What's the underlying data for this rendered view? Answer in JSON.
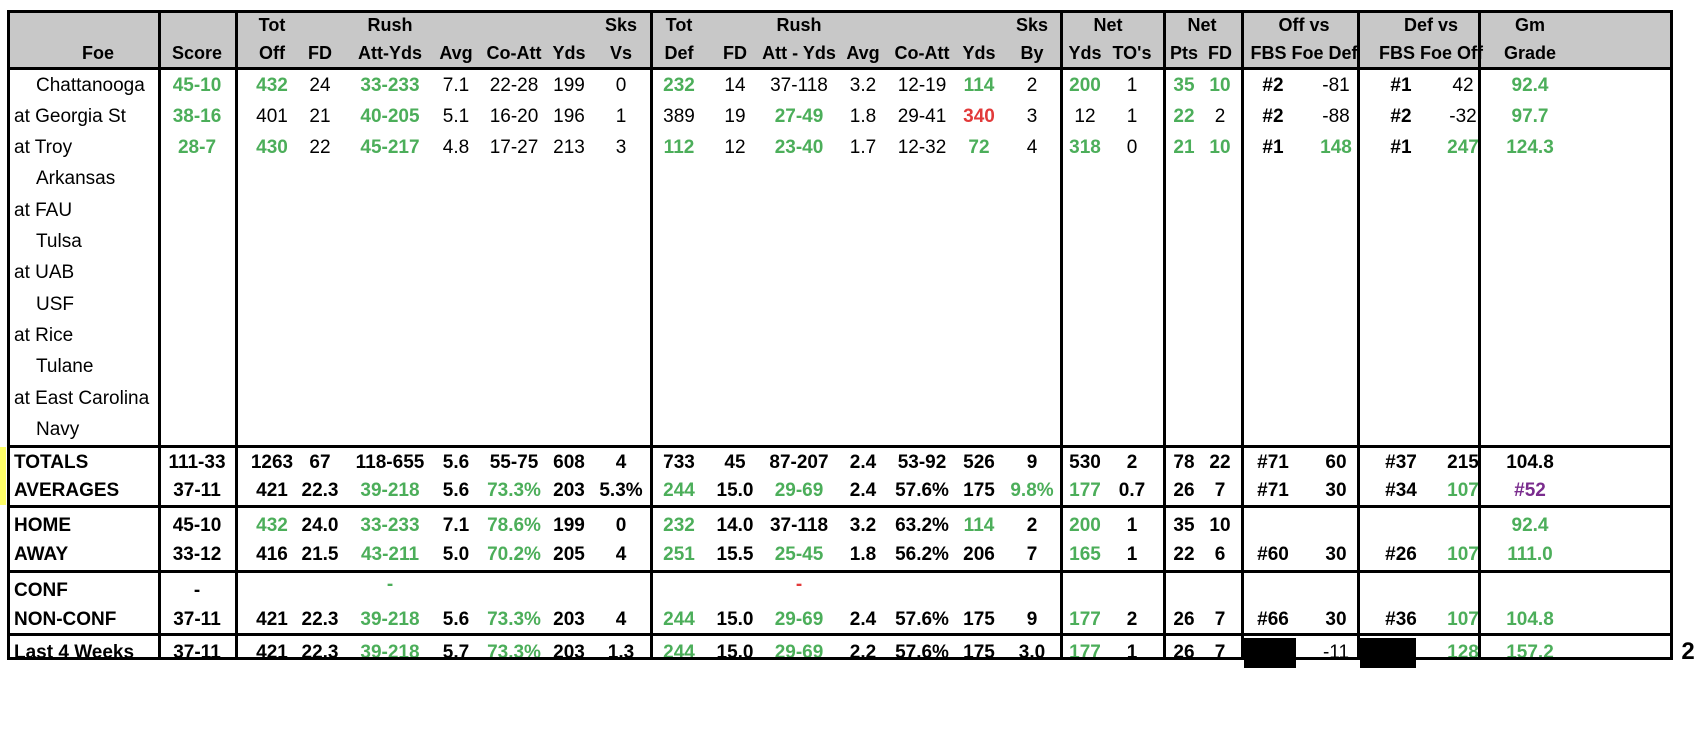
{
  "colors": {
    "green": "#4cae5a",
    "red": "#e23a3a",
    "purple": "#7a2c8e",
    "header_bg": "#c8c8c8",
    "highlight": "#ffff66"
  },
  "header": {
    "r1": [
      "",
      "",
      "Tot",
      "Rush",
      "",
      "",
      "",
      "Sks",
      "Tot",
      "Rush",
      "",
      "",
      "",
      "Sks",
      "Net",
      "",
      "Net",
      "",
      "Off vs",
      "",
      "Def vs",
      "",
      "Gm"
    ],
    "r2": [
      "Foe",
      "Score",
      "Off",
      "FD",
      "Att-Yds",
      "Avg",
      "Co-Att",
      "Yds",
      "Vs",
      "Def",
      "FD",
      "Att - Yds",
      "Avg",
      "Co-Att",
      "Yds",
      "By",
      "Yds",
      "TO's",
      "Pts",
      "FD",
      "FBS Foe Def",
      "",
      "FBS Foe Off",
      "",
      "Grade"
    ]
  },
  "games": [
    {
      "foe": "Chattanooga",
      "home": true,
      "cells": [
        "45-10",
        "432",
        "24",
        "33-233",
        "7.1",
        "22-28",
        "199",
        "0",
        "232",
        "14",
        "37-118",
        "3.2",
        "12-19",
        "114",
        "2",
        "200",
        "1",
        "35",
        "10",
        "#2",
        "-81",
        "#1",
        "42",
        "92.4"
      ],
      "st": [
        "g",
        "g",
        "",
        "g",
        "",
        "",
        "",
        "",
        "g",
        "",
        "",
        "",
        "",
        "g",
        "",
        "g",
        "",
        "g",
        "g",
        "b",
        "",
        "b",
        "",
        "g"
      ]
    },
    {
      "foe": "at Georgia St",
      "home": false,
      "cells": [
        "38-16",
        "401",
        "21",
        "40-205",
        "5.1",
        "16-20",
        "196",
        "1",
        "389",
        "19",
        "27-49",
        "1.8",
        "29-41",
        "340",
        "3",
        "12",
        "1",
        "22",
        "2",
        "#2",
        "-88",
        "#2",
        "-32",
        "97.7"
      ],
      "st": [
        "g",
        "",
        "",
        "g",
        "",
        "",
        "",
        "",
        "",
        "",
        "g",
        "",
        "",
        "r",
        "",
        "",
        "",
        "g",
        "",
        "b",
        "",
        "b",
        "",
        "g"
      ]
    },
    {
      "foe": "at Troy",
      "home": false,
      "cells": [
        "28-7",
        "430",
        "22",
        "45-217",
        "4.8",
        "17-27",
        "213",
        "3",
        "112",
        "12",
        "23-40",
        "1.7",
        "12-32",
        "72",
        "4",
        "318",
        "0",
        "21",
        "10",
        "#1",
        "148",
        "#1",
        "247",
        "124.3"
      ],
      "st": [
        "g",
        "g",
        "",
        "g",
        "",
        "",
        "",
        "",
        "g",
        "",
        "g",
        "",
        "",
        "g",
        "",
        "g",
        "",
        "g",
        "g",
        "b",
        "g",
        "b",
        "g",
        "g"
      ]
    },
    {
      "foe": "Arkansas",
      "home": true
    },
    {
      "foe": "at FAU",
      "home": false
    },
    {
      "foe": "Tulsa",
      "home": true
    },
    {
      "foe": "at UAB",
      "home": false
    },
    {
      "foe": "USF",
      "home": true
    },
    {
      "foe": "at Rice",
      "home": false
    },
    {
      "foe": "Tulane",
      "home": true
    },
    {
      "foe": "at East Carolina",
      "home": false
    },
    {
      "foe": "Navy",
      "home": true
    }
  ],
  "summary": [
    {
      "label": "TOTALS",
      "cells": [
        "111-33",
        "1263",
        "67",
        "118-655",
        "5.6",
        "55-75",
        "608",
        "4",
        "733",
        "45",
        "87-207",
        "2.4",
        "53-92",
        "526",
        "9",
        "530",
        "2",
        "78",
        "22",
        "#71",
        "60",
        "#37",
        "215",
        "104.8"
      ],
      "st": [
        "",
        "",
        "",
        "",
        "",
        "",
        "",
        "",
        "",
        "",
        "",
        "",
        "",
        "",
        "",
        "",
        "",
        "",
        "",
        "",
        "",
        "",
        "",
        ""
      ]
    },
    {
      "label": "AVERAGES",
      "cells": [
        "37-11",
        "421",
        "22.3",
        "39-218",
        "5.6",
        "73.3%",
        "203",
        "5.3%",
        "244",
        "15.0",
        "29-69",
        "2.4",
        "57.6%",
        "175",
        "9.8%",
        "177",
        "0.7",
        "26",
        "7",
        "#71",
        "30",
        "#34",
        "107",
        "#52"
      ],
      "st": [
        "",
        "",
        "",
        "g",
        "",
        "g",
        "",
        "",
        "g",
        "",
        "g",
        "",
        "",
        "",
        "g",
        "g",
        "",
        "",
        "",
        "",
        "",
        "",
        "g",
        "p"
      ]
    },
    {
      "label": "HOME",
      "cells": [
        "45-10",
        "432",
        "24.0",
        "33-233",
        "7.1",
        "78.6%",
        "199",
        "0",
        "232",
        "14.0",
        "37-118",
        "3.2",
        "63.2%",
        "114",
        "2",
        "200",
        "1",
        "35",
        "10",
        "",
        "",
        "",
        "",
        "92.4"
      ],
      "st": [
        "",
        "g",
        "",
        "g",
        "",
        "g",
        "",
        "",
        "g",
        "",
        "",
        "",
        "",
        "g",
        "",
        "g",
        "",
        "",
        "",
        "",
        "",
        "",
        "",
        "g"
      ]
    },
    {
      "label": "AWAY",
      "cells": [
        "33-12",
        "416",
        "21.5",
        "43-211",
        "5.0",
        "70.2%",
        "205",
        "4",
        "251",
        "15.5",
        "25-45",
        "1.8",
        "56.2%",
        "206",
        "7",
        "165",
        "1",
        "22",
        "6",
        "#60",
        "30",
        "#26",
        "107",
        "111.0"
      ],
      "st": [
        "",
        "",
        "",
        "g",
        "",
        "g",
        "",
        "",
        "g",
        "",
        "g",
        "",
        "",
        "",
        "",
        "g",
        "",
        "",
        "",
        "",
        "",
        "",
        "g",
        "g"
      ]
    },
    {
      "label": "CONF",
      "cells": [
        "-",
        "",
        "",
        "-",
        "",
        "",
        "",
        "",
        "",
        "",
        "-",
        "",
        "",
        "",
        "",
        "",
        "",
        "",
        "",
        "",
        "",
        "",
        "",
        ""
      ],
      "st": [
        "",
        "",
        "",
        "g",
        "",
        "",
        "",
        "",
        "",
        "",
        "r",
        "",
        "",
        "",
        "",
        "",
        "",
        "",
        "",
        "",
        "",
        "",
        "",
        ""
      ]
    },
    {
      "label": "NON-CONF",
      "cells": [
        "37-11",
        "421",
        "22.3",
        "39-218",
        "5.6",
        "73.3%",
        "203",
        "4",
        "244",
        "15.0",
        "29-69",
        "2.4",
        "57.6%",
        "175",
        "9",
        "177",
        "2",
        "26",
        "7",
        "#66",
        "30",
        "#36",
        "107",
        "104.8"
      ],
      "st": [
        "",
        "",
        "",
        "g",
        "",
        "g",
        "",
        "",
        "g",
        "",
        "g",
        "",
        "",
        "",
        "",
        "g",
        "",
        "",
        "",
        "",
        "",
        "",
        "g",
        "g"
      ]
    },
    {
      "label": "Last 4 Weeks",
      "cells": [
        "37-11",
        "421",
        "22.3",
        "39-218",
        "5.7",
        "73.3%",
        "203",
        "1.3",
        "244",
        "15.0",
        "29-69",
        "2.2",
        "57.6%",
        "175",
        "3.0",
        "177",
        "1",
        "26",
        "7",
        "",
        "-11",
        "",
        "128",
        "157.2"
      ],
      "st": [
        "",
        "",
        "",
        "g",
        "",
        "g",
        "",
        "",
        "g",
        "",
        "g",
        "",
        "",
        "",
        "",
        "g",
        "",
        "",
        "",
        "",
        "k",
        "",
        "g",
        "g"
      ]
    }
  ],
  "overflow_label": "2"
}
